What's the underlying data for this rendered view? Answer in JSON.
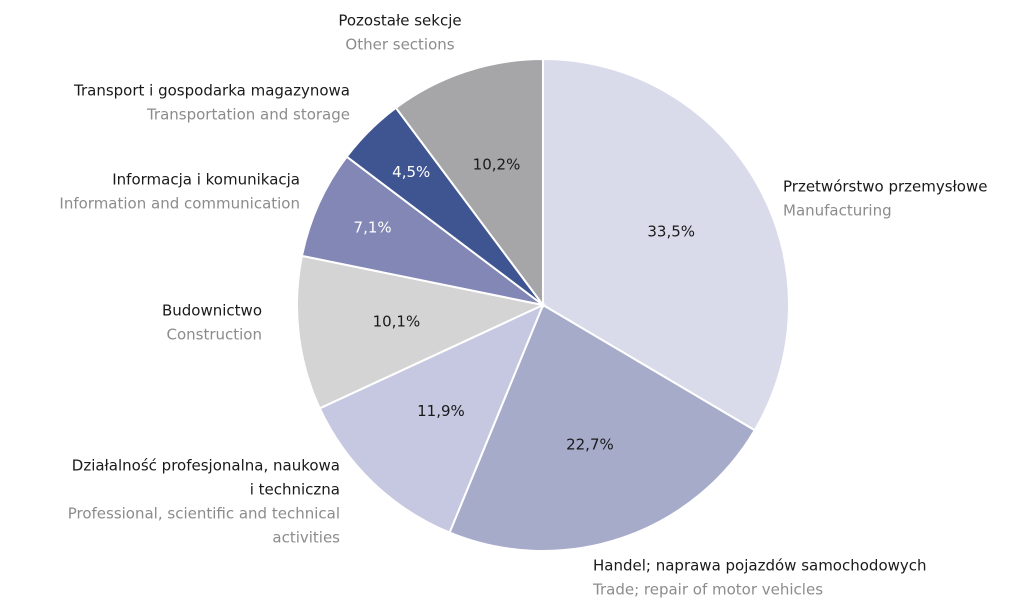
{
  "chart_data": {
    "type": "pie",
    "categories": [
      [
        "Przetwórstwo przemysłowe"
      ],
      [
        "Handel; naprawa pojazdów samochodowych"
      ],
      [
        "Działalność profesjonalna, naukowa",
        "i techniczna"
      ],
      [
        "Budownictwo"
      ],
      [
        "Informacja i komunikacja"
      ],
      [
        "Transport i gospodarka magazynowa"
      ],
      [
        "Pozostałe sekcje"
      ]
    ],
    "categories_en": [
      [
        "Manufacturing"
      ],
      [
        "Trade; repair of motor vehicles"
      ],
      [
        "Professional, scientific and technical",
        "activities"
      ],
      [
        "Construction"
      ],
      [
        "Information and communication"
      ],
      [
        "Transportation and storage"
      ],
      [
        "Other sections"
      ]
    ],
    "values": [
      33.5,
      22.7,
      11.9,
      10.1,
      7.1,
      4.5,
      10.2
    ],
    "value_labels": [
      "33,5%",
      "22,7%",
      "11,9%",
      "10,1%",
      "7,1%",
      "4,5%",
      "10,2%"
    ],
    "colors": [
      "#d9dbea",
      "#a7abca",
      "#c5c8e0",
      "#d4d4d4",
      "#8287b5",
      "#3f5592",
      "#a6a6a8"
    ]
  }
}
